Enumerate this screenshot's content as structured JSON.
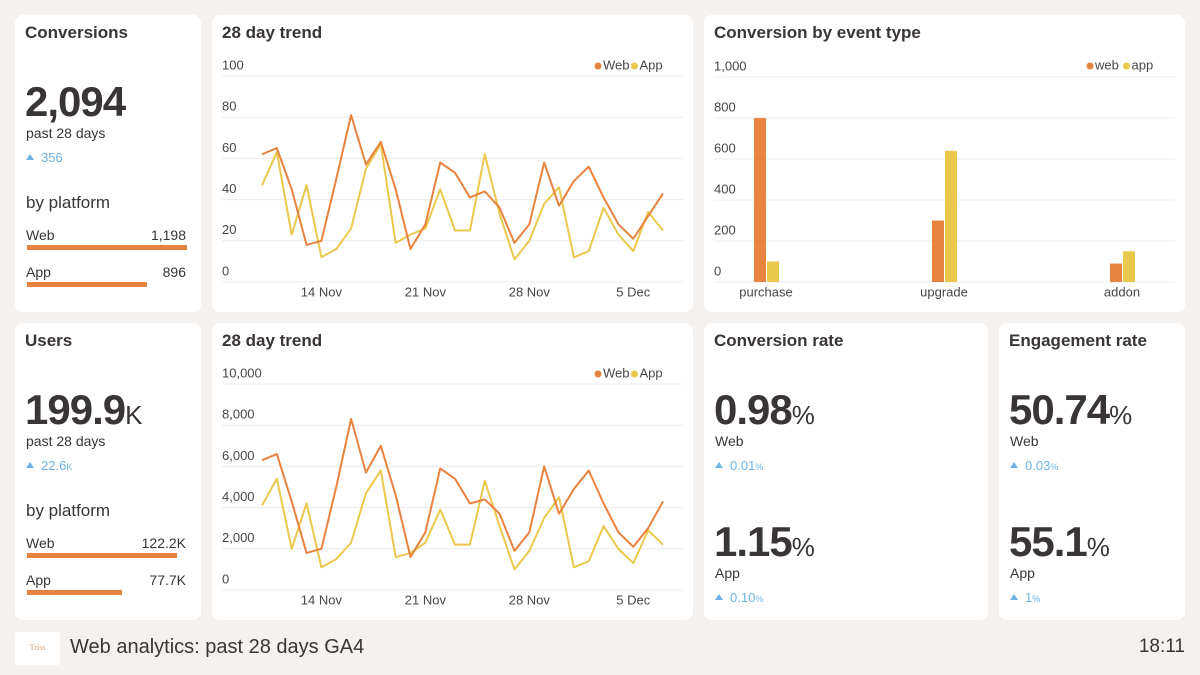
{
  "conversions": {
    "title": "Conversions",
    "value": "2,094",
    "period": "past 28 days",
    "change": "356",
    "breakdown_title": "by platform",
    "platforms": {
      "names": [
        "Web",
        "App"
      ],
      "values": [
        1198,
        896
      ],
      "value_labels": [
        "1,198",
        "896"
      ]
    }
  },
  "conversion_trend": {
    "type": "line",
    "title": "28 day trend",
    "categories": [
      null,
      null,
      null,
      null,
      "14 Nov",
      null,
      null,
      null,
      null,
      null,
      null,
      "21 Nov",
      null,
      null,
      null,
      null,
      null,
      null,
      "28 Nov",
      null,
      null,
      null,
      null,
      null,
      null,
      "5 Dec",
      null,
      null
    ],
    "series": [
      {
        "name": "Web",
        "color": "#e8823f",
        "values": [
          62,
          65,
          45,
          18,
          20,
          50,
          81,
          57,
          68,
          45,
          16,
          28,
          58,
          53,
          41,
          44,
          36,
          19,
          28,
          58,
          37,
          49,
          56,
          41,
          28,
          21,
          32,
          43
        ]
      },
      {
        "name": "App",
        "color": "#e9c84c",
        "values": [
          47,
          63,
          23,
          47,
          12,
          16,
          26,
          55,
          67,
          19,
          23,
          26,
          45,
          25,
          25,
          62,
          33,
          11,
          20,
          38,
          46,
          12,
          15,
          36,
          23,
          15,
          34,
          25
        ]
      }
    ],
    "ylim": [
      0,
      100
    ],
    "yticks": [
      0,
      20,
      40,
      60,
      80,
      100
    ],
    "grid": true,
    "legend": "top-right"
  },
  "event_types": {
    "type": "bar",
    "title": "Conversion by event type",
    "categories": [
      "purchase",
      "upgrade",
      "addon"
    ],
    "series": [
      {
        "name": "web",
        "color": "#e8823f",
        "values": [
          800,
          300,
          90
        ]
      },
      {
        "name": "app",
        "color": "#e9c84c",
        "values": [
          100,
          640,
          150
        ]
      }
    ],
    "ylim": [
      0,
      1000
    ],
    "yticks": [
      0,
      200,
      400,
      600,
      800,
      {
        "value": 1000,
        "label": "1,000"
      }
    ],
    "grid": true,
    "legend": "top-right"
  },
  "users": {
    "title": "Users",
    "value": "199.9",
    "value_unit": "K",
    "period": "past 28 days",
    "change": "22.6",
    "change_unit": "K",
    "breakdown_title": "by platform",
    "platforms": {
      "names": [
        "Web",
        "App"
      ],
      "values": [
        122200,
        77700
      ],
      "value_labels": [
        "122.2K",
        "77.7K"
      ]
    }
  },
  "user_trend": {
    "type": "line",
    "title": "28 day trend",
    "categories": [
      null,
      null,
      null,
      null,
      "14 Nov",
      null,
      null,
      null,
      null,
      null,
      null,
      "21 Nov",
      null,
      null,
      null,
      null,
      null,
      null,
      "28 Nov",
      null,
      null,
      null,
      null,
      null,
      null,
      "5 Dec",
      null,
      null
    ],
    "series": [
      {
        "name": "Web",
        "color": "#e8823f",
        "values": [
          6300,
          6600,
          4300,
          1800,
          2000,
          5000,
          8300,
          5700,
          7000,
          4600,
          1600,
          2800,
          5900,
          5400,
          4200,
          4400,
          3700,
          1900,
          2800,
          6000,
          3700,
          4900,
          5800,
          4200,
          2800,
          2100,
          3000,
          4300
        ]
      },
      {
        "name": "App",
        "color": "#e9c84c",
        "values": [
          4100,
          5400,
          2000,
          4200,
          1100,
          1500,
          2300,
          4700,
          5800,
          1600,
          1800,
          2300,
          3900,
          2200,
          2200,
          5300,
          3100,
          1000,
          1900,
          3500,
          4500,
          1100,
          1400,
          3100,
          2000,
          1300,
          2900,
          2200
        ]
      }
    ],
    "ylim": [
      0,
      10000
    ],
    "yticks": [
      0,
      {
        "value": 2000,
        "label": "2,000"
      },
      {
        "value": 4000,
        "label": "4,000"
      },
      {
        "value": 6000,
        "label": "6,000"
      },
      {
        "value": 8000,
        "label": "8,000"
      },
      {
        "value": 10000,
        "label": "10,000"
      }
    ],
    "grid": true,
    "legend": "top-right"
  },
  "conversion_rate": {
    "title": "Conversion rate",
    "items": [
      {
        "value": "0.98",
        "unit": "%",
        "name": "Web",
        "change": "0.01",
        "change_unit": "%"
      },
      {
        "value": "1.15",
        "unit": "%",
        "name": "App",
        "change": "0.10",
        "change_unit": "%"
      }
    ]
  },
  "engagement_rate": {
    "title": "Engagement rate",
    "items": [
      {
        "value": "50.74",
        "unit": "%",
        "name": "Web",
        "change": "0.03",
        "change_unit": "%"
      },
      {
        "value": "55.1",
        "unit": "%",
        "name": "App",
        "change": "1",
        "change_unit": "%"
      }
    ]
  },
  "footer": {
    "logo": "Triss",
    "title": "Web analytics: past 28 days GA4",
    "time": "18:11"
  }
}
